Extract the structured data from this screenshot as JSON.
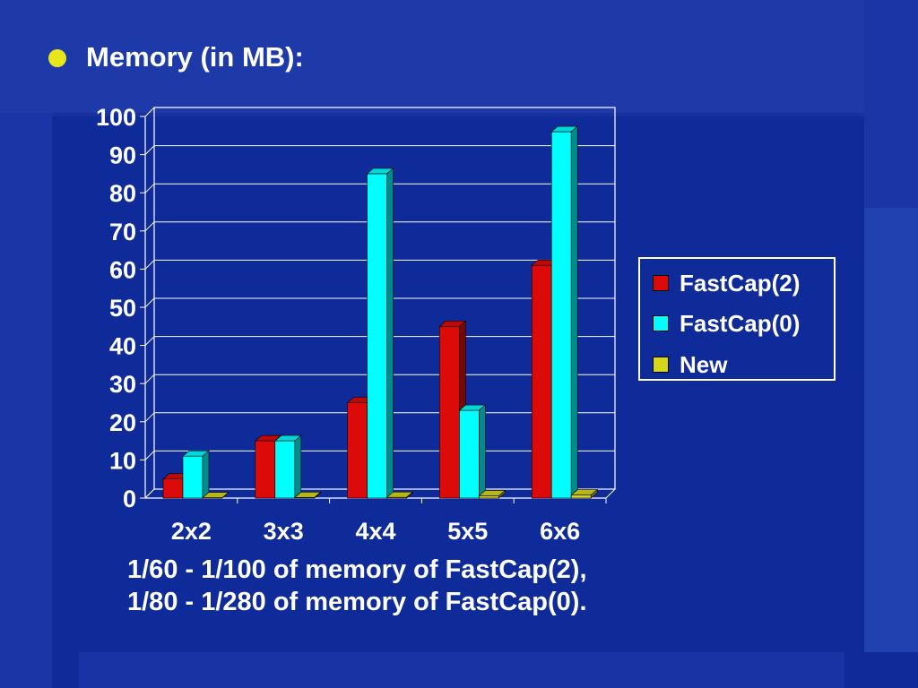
{
  "slide": {
    "title": "Memory (in MB):",
    "notes": [
      "1/60 - 1/100 of memory of FastCap(2),",
      "1/80 - 1/280 of memory of FastCap(0)."
    ]
  },
  "colors": {
    "background": "#0f2a99",
    "bullet": "#e6e61a"
  },
  "chart_data": {
    "type": "bar",
    "categories": [
      "2x2",
      "3x3",
      "4x4",
      "5x5",
      "6x6"
    ],
    "series": [
      {
        "name": "FastCap(2)",
        "values": [
          5,
          15,
          25,
          45,
          61
        ],
        "color": "#dd0a0a"
      },
      {
        "name": "FastCap(0)",
        "values": [
          11,
          15,
          85,
          23,
          96
        ],
        "color": "#00ffff"
      },
      {
        "name": "New",
        "values": [
          0.1,
          0.15,
          0.2,
          0.6,
          0.8
        ],
        "color": "#d6d61a"
      }
    ],
    "title": "",
    "xlabel": "",
    "ylabel": "",
    "ylim": [
      0,
      100
    ],
    "yticks": [
      "0",
      "10",
      "20",
      "30",
      "40",
      "50",
      "60",
      "70",
      "80",
      "90",
      "100"
    ],
    "grid": true,
    "legend_position": "right"
  }
}
